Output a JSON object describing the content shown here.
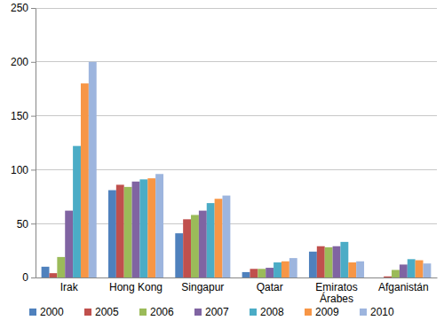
{
  "chart_data": {
    "type": "bar",
    "categories": [
      "Irak",
      "Hong Kong",
      "Singapur",
      "Qatar",
      "Emiratos Árabes",
      "Afganistán"
    ],
    "series": [
      {
        "name": "2000",
        "color": "#4f81bd",
        "values": [
          10,
          81,
          41,
          5,
          24,
          0
        ]
      },
      {
        "name": "2005",
        "color": "#c0504d",
        "values": [
          4,
          86,
          54,
          8,
          29,
          1
        ]
      },
      {
        "name": "2006",
        "color": "#9bbb59",
        "values": [
          19,
          84,
          58,
          8,
          28,
          7
        ]
      },
      {
        "name": "2007",
        "color": "#8064a2",
        "values": [
          62,
          89,
          62,
          9,
          29,
          12
        ]
      },
      {
        "name": "2008",
        "color": "#4bacc6",
        "values": [
          122,
          91,
          69,
          14,
          33,
          17
        ]
      },
      {
        "name": "2009",
        "color": "#f79646",
        "values": [
          180,
          92,
          73,
          15,
          14,
          16
        ]
      },
      {
        "name": "2010",
        "color": "#9db5de",
        "values": [
          200,
          96,
          76,
          18,
          15,
          13
        ]
      }
    ],
    "ylim": [
      0,
      250
    ],
    "yticks": [
      0,
      50,
      100,
      150,
      200,
      250
    ],
    "grid": true,
    "legend": "bottom"
  }
}
